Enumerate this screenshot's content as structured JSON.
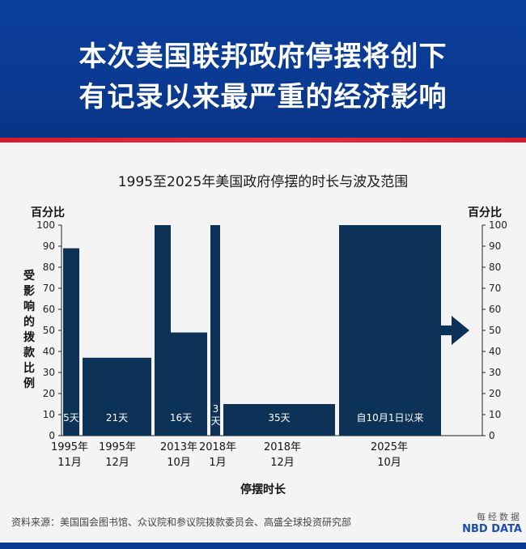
{
  "header": {
    "line1": "本次美国联邦政府停摆将创下",
    "line2": "有记录以来最严重的经济影响"
  },
  "chart_data": {
    "type": "bar",
    "title": "1995至2025年美国政府停摆的时长与波及范围",
    "ylabel_left": "百分比",
    "ylabel_right": "百分比",
    "ylabel_vertical": "受影响的拨款比例",
    "xlabel": "停摆时长",
    "ylim": [
      0,
      100
    ],
    "yticks": [
      0,
      10,
      20,
      30,
      40,
      50,
      60,
      70,
      80,
      90,
      100
    ],
    "bars": [
      {
        "x_label_top": "1995年",
        "x_label_bottom": "11月",
        "duration_label": "5天",
        "values": [
          89
        ],
        "days": 5
      },
      {
        "x_label_top": "1995年",
        "x_label_bottom": "12月",
        "duration_label": "21天",
        "values": [
          37
        ],
        "days": 21
      },
      {
        "x_label_top": "2013年",
        "x_label_bottom": "10月",
        "duration_label": "16天",
        "values": [
          100,
          49
        ],
        "days": 16
      },
      {
        "x_label_top": "2018年",
        "x_label_bottom": "1月",
        "duration_label": "3天",
        "values": [
          100
        ],
        "days": 3
      },
      {
        "x_label_top": "2018年",
        "x_label_bottom": "12月",
        "duration_label": "35天",
        "values": [
          15
        ],
        "days": 35
      },
      {
        "x_label_top": "2025年",
        "x_label_bottom": "10月",
        "duration_label": "自10月1日以来",
        "values": [
          100
        ],
        "days": null
      }
    ],
    "bar_color": "#0d3257"
  },
  "source": "资料来源：美国国会图书馆、众议院和参议院拨款委员会、高盛全球投资研究部",
  "logo": {
    "cn": "每经数据",
    "en": "NBD DATA"
  }
}
